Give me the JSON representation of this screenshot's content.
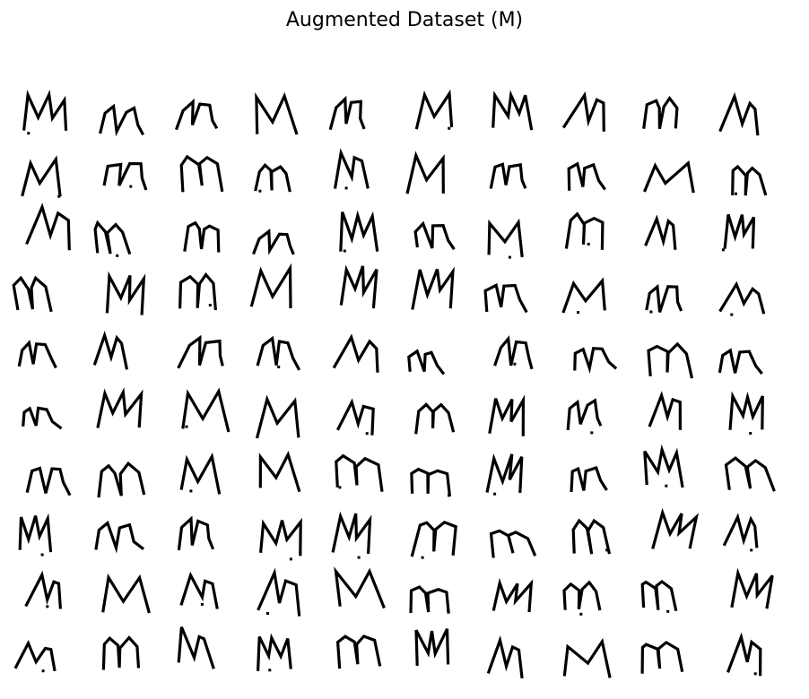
{
  "figure": {
    "title": "Augmented Dataset (M)"
  },
  "grid": {
    "rows": 10,
    "cols": 10,
    "sample_label": "M",
    "ink_color": "#000000",
    "background_color": "#ffffff"
  }
}
